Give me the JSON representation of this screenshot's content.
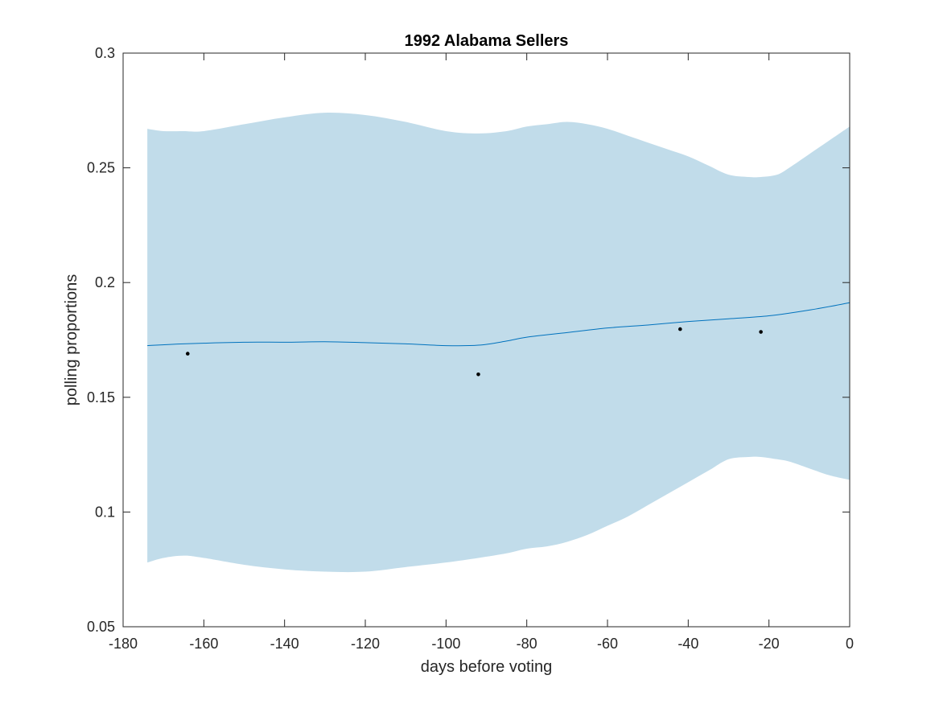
{
  "chart_data": {
    "type": "line",
    "title": "1992 Alabama Sellers",
    "xlabel": "days before voting",
    "ylabel": "polling proportions",
    "xlim": [
      -180,
      0
    ],
    "ylim": [
      0.05,
      0.3
    ],
    "xticks": [
      -180,
      -160,
      -140,
      -120,
      -100,
      -80,
      -60,
      -40,
      -20,
      0
    ],
    "xtick_labels": [
      "-180",
      "-160",
      "-140",
      "-120",
      "-100",
      "-80",
      "-60",
      "-40",
      "-20",
      "0"
    ],
    "yticks": [
      0.05,
      0.1,
      0.15,
      0.2,
      0.25,
      0.3
    ],
    "ytick_labels": [
      "0.05",
      "0.1",
      "0.15",
      "0.2",
      "0.25",
      "0.3"
    ],
    "grid": false,
    "series": [
      {
        "kind": "band",
        "color": "#c1dcea",
        "x": [
          -174,
          -170,
          -165,
          -160,
          -150,
          -140,
          -130,
          -120,
          -110,
          -100,
          -92,
          -85,
          -80,
          -75,
          -70,
          -65,
          -60,
          -55,
          -50,
          -45,
          -40,
          -35,
          -30,
          -25,
          -22,
          -18,
          -15,
          -10,
          -5,
          0
        ],
        "upper": [
          0.267,
          0.266,
          0.266,
          0.266,
          0.269,
          0.272,
          0.274,
          0.273,
          0.27,
          0.266,
          0.265,
          0.266,
          0.268,
          0.269,
          0.27,
          0.269,
          0.267,
          0.264,
          0.261,
          0.258,
          0.255,
          0.251,
          0.247,
          0.246,
          0.246,
          0.247,
          0.25,
          0.256,
          0.262,
          0.268
        ],
        "lower": [
          0.078,
          0.08,
          0.081,
          0.08,
          0.077,
          0.075,
          0.074,
          0.074,
          0.076,
          0.078,
          0.08,
          0.082,
          0.084,
          0.085,
          0.087,
          0.09,
          0.094,
          0.098,
          0.103,
          0.108,
          0.113,
          0.118,
          0.123,
          0.124,
          0.124,
          0.123,
          0.122,
          0.119,
          0.116,
          0.114
        ]
      },
      {
        "kind": "line",
        "color": "#0072bd",
        "x": [
          -174,
          -165,
          -150,
          -140,
          -130,
          -120,
          -110,
          -100,
          -92,
          -85,
          -80,
          -70,
          -60,
          -50,
          -40,
          -30,
          -20,
          -10,
          0
        ],
        "y": [
          0.1725,
          0.1733,
          0.174,
          0.174,
          0.1742,
          0.1738,
          0.1733,
          0.1725,
          0.1727,
          0.1745,
          0.1762,
          0.1782,
          0.1802,
          0.1815,
          0.183,
          0.1842,
          0.1855,
          0.188,
          0.1912
        ]
      },
      {
        "kind": "scatter",
        "color": "#000000",
        "x": [
          -164,
          -92,
          -42,
          -22
        ],
        "y": [
          0.169,
          0.16,
          0.1797,
          0.1785
        ]
      }
    ]
  }
}
